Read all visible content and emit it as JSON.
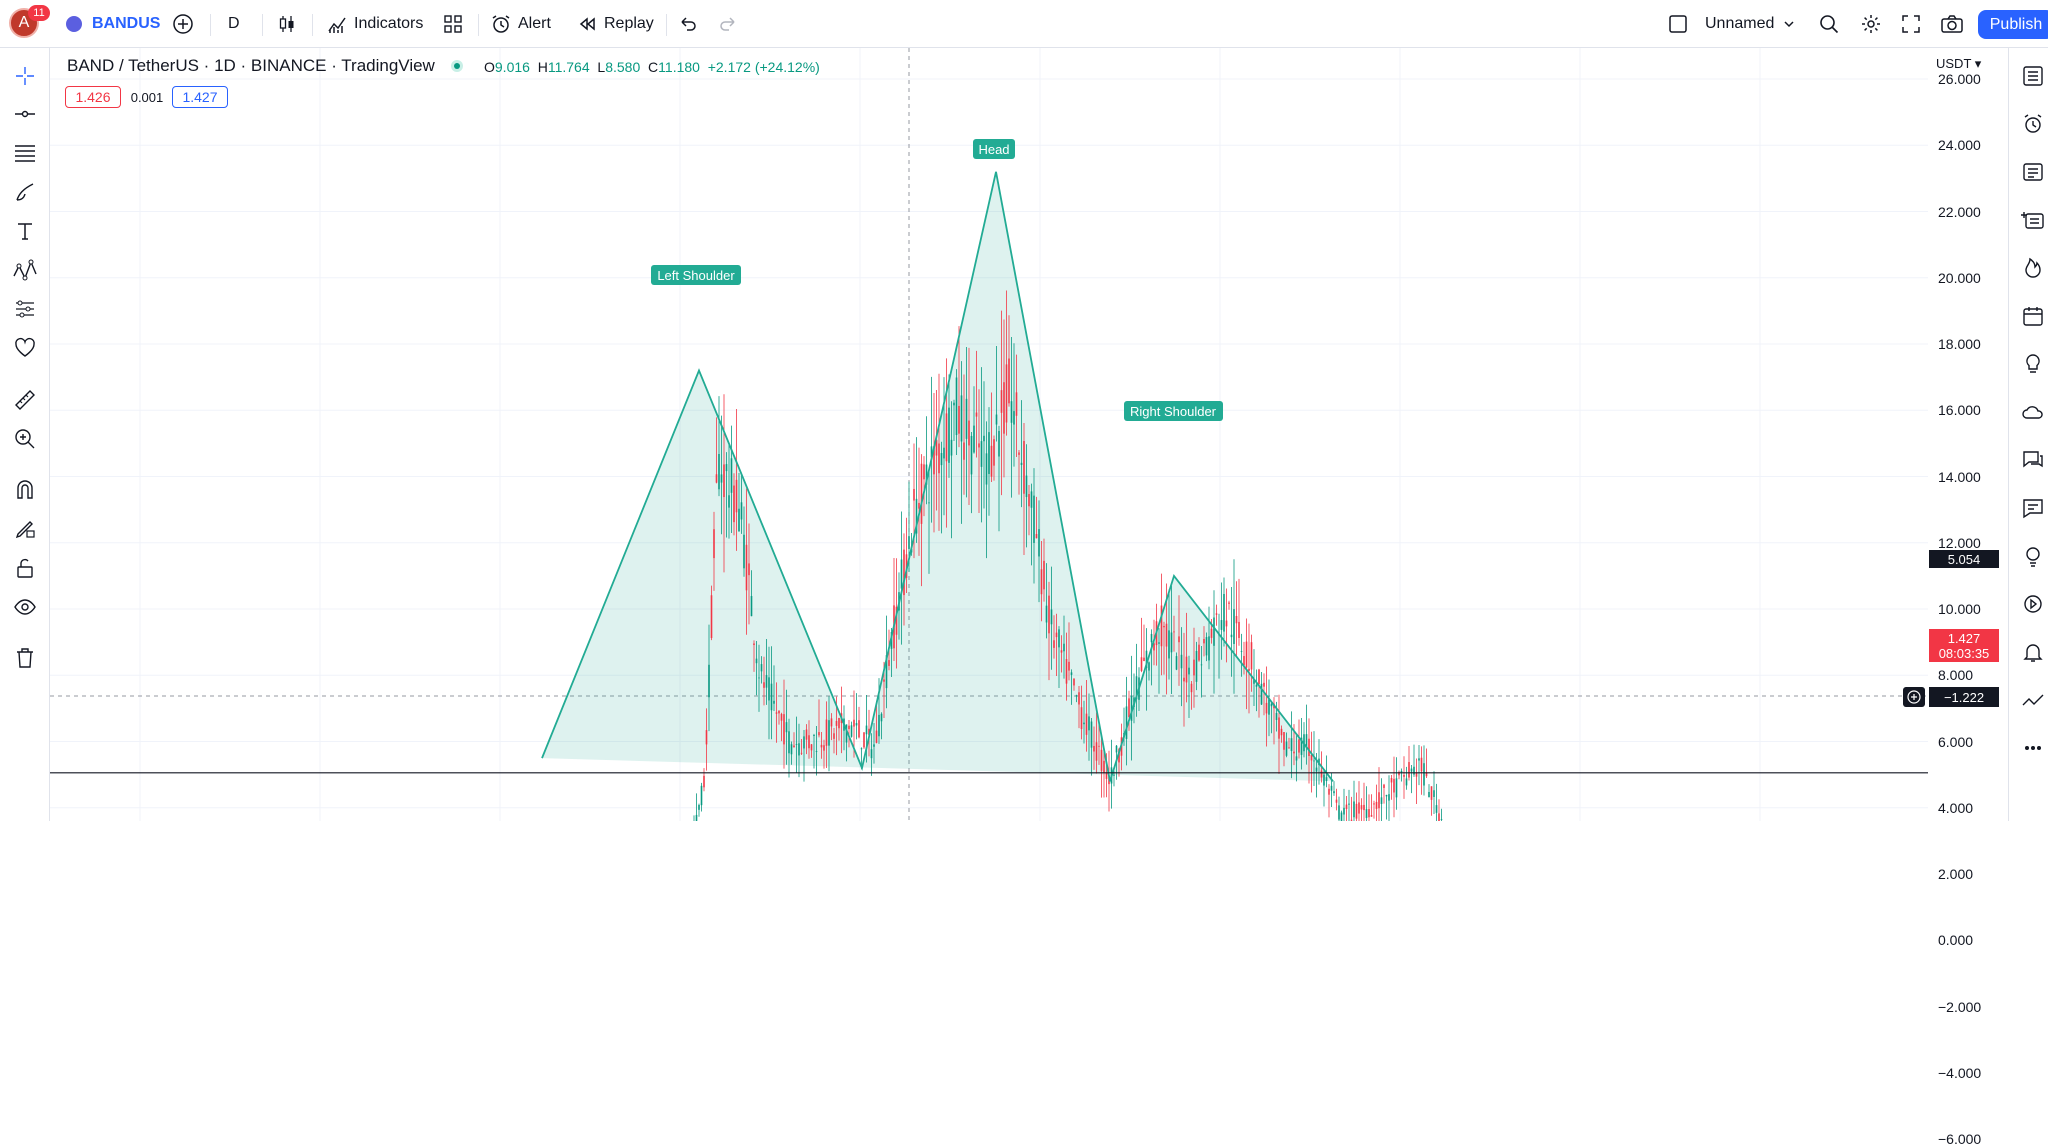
{
  "header": {
    "avatar_letter": "A",
    "notification_count": "11",
    "symbol": "BANDUS",
    "interval": "D",
    "indicators_label": "Indicators",
    "alert_label": "Alert",
    "replay_label": "Replay",
    "layout_name": "Unnamed",
    "publish_label": "Publish"
  },
  "legend": {
    "title": "BAND / TetherUS · 1D · BINANCE · TradingView",
    "open_key": "O",
    "open": "9.016",
    "high_key": "H",
    "high": "11.764",
    "low_key": "L",
    "low": "8.580",
    "close_key": "C",
    "close": "11.180",
    "change": "+2.172 (+24.12%)",
    "bid": "1.426",
    "spread": "0.001",
    "ask": "1.427"
  },
  "price_axis": {
    "currency": "USDT",
    "labels": [
      "26.000",
      "24.000",
      "22.000",
      "20.000",
      "18.000",
      "16.000",
      "14.000",
      "12.000",
      "10.000",
      "8.000",
      "6.000",
      "4.000",
      "2.000",
      "0.000",
      "−2.000",
      "−4.000",
      "−6.000"
    ],
    "neckline_value": "5.054",
    "last_price": "1.427",
    "countdown": "08:03:35",
    "crosshair_value": "−1.222"
  },
  "annotations": {
    "left_shoulder": "Left Shoulder",
    "head": "Head",
    "right_shoulder": "Right Shoulder"
  },
  "colors": {
    "up": "#089981",
    "down": "#f23645",
    "pattern_fill": "#22ab94",
    "label_bg": "#22ab94",
    "accent": "#2962ff"
  },
  "left_toolbar_icons": [
    "crosshair-icon",
    "trend-line-icon",
    "fib-retracement-icon",
    "brush-icon",
    "text-icon",
    "pattern-icon",
    "prediction-icon",
    "heart-icon",
    "ruler-icon",
    "zoom-in-icon",
    "magnet-icon",
    "lock-drawing-icon",
    "unlock-icon",
    "eye-icon",
    "trash-icon"
  ],
  "right_toolbar_icons": [
    "watchlist-icon",
    "alarm-clock-icon",
    "news-icon",
    "add-list-icon",
    "fire-icon",
    "calendar-icon",
    "ideas-icon",
    "cloud-chat-icon",
    "chats-icon",
    "chat-icon",
    "lightbulb-icon",
    "play-icon",
    "bell-icon",
    "zigzag-icon",
    "more-icon"
  ],
  "chart_data": {
    "type": "candlestick",
    "pattern": "head-and-shoulders",
    "y_range": [
      -6,
      26
    ],
    "neckline": 5.054,
    "last_price": 1.427,
    "pattern_points": [
      {
        "label": "Left Shoulder",
        "price": 17.2
      },
      {
        "label": "Head",
        "price": 23.2
      },
      {
        "label": "Right Shoulder",
        "price": 11.0
      }
    ]
  }
}
